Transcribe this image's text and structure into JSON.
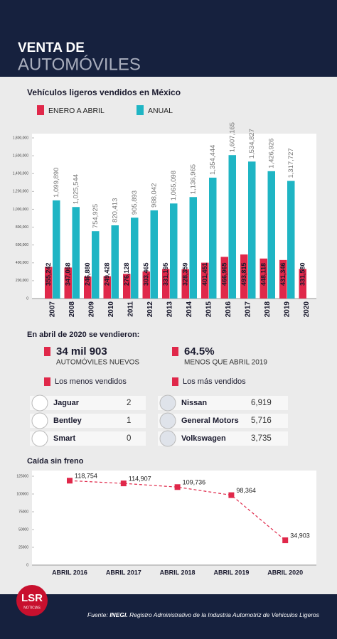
{
  "header": {
    "title_line1": "VENTA DE",
    "title_line2": "AUTOMÓVILES"
  },
  "chart_data": [
    {
      "type": "bar",
      "title": "Vehículos ligeros vendidos en México",
      "categories": [
        "2007",
        "2008",
        "2009",
        "2010",
        "2011",
        "2012",
        "2013",
        "2014",
        "2015",
        "2016",
        "2017",
        "2018",
        "2019",
        "2020"
      ],
      "series": [
        {
          "name": "ENERO A ABRIL",
          "color": "#e0284a",
          "values": [
            355242,
            347068,
            246880,
            249428,
            276128,
            303465,
            331195,
            328359,
            401451,
            466965,
            493815,
            448118,
            431346,
            331580
          ],
          "value_labels": [
            "355,242",
            "347,068",
            "246,880",
            "249,428",
            "276,128",
            "303,465",
            "331,195",
            "328,359",
            "401,451",
            "466,965",
            "493,815",
            "448,118",
            "431,346",
            "331,580"
          ]
        },
        {
          "name": "ANUAL",
          "color": "#1fb5c4",
          "values": [
            1099890,
            1025544,
            754925,
            820413,
            905893,
            988042,
            1065098,
            1136965,
            1354444,
            1607165,
            1534827,
            1426926,
            1317727,
            null
          ],
          "value_labels": [
            "1,099,890",
            "1,025,544",
            "754,925",
            "820,413",
            "905,893",
            "988,042",
            "1,065,098",
            "1,136,965",
            "1,354,444",
            "1,607,165",
            "1,534,827",
            "1,426,926",
            "1,317,727",
            null
          ]
        }
      ],
      "ylim": [
        0,
        1800000
      ],
      "yticks": [
        0,
        {
          "value": 200000,
          "label": "200,000"
        },
        {
          "value": 400000,
          "label": "400,000"
        },
        {
          "value": 600000,
          "label": "600,000"
        },
        {
          "value": 800000,
          "label": "800,000"
        },
        {
          "value": 1000000,
          "label": "1,000,000"
        },
        {
          "value": 1200000,
          "label": "1,200,000"
        },
        {
          "value": 1400000,
          "label": "1,400,000"
        },
        {
          "value": 1600000,
          "label": "1,600,000"
        },
        {
          "value": 1800000,
          "label": "1,800,000"
        }
      ]
    },
    {
      "type": "line",
      "title": "Caída sin freno",
      "categories": [
        "ABRIL 2016",
        "ABRIL 2017",
        "ABRIL 2018",
        "ABRIL 2019",
        "ABRIL 2020"
      ],
      "series": [
        {
          "color": "#e0284a",
          "values": [
            118754,
            114907,
            109736,
            98364,
            34903
          ],
          "value_labels": [
            "118,754",
            "114,907",
            "109,736",
            "98,364",
            "34,903"
          ]
        }
      ],
      "ylim": [
        0,
        125000
      ],
      "yticks": [
        0,
        25000,
        50000,
        75000,
        100000,
        125000
      ]
    }
  ],
  "summary": {
    "heading": "En abril de 2020 se vendieron:",
    "stats": [
      {
        "value": "34 mil 903",
        "label": "AUTOMÓVILES NUEVOS"
      },
      {
        "value": "64.5%",
        "label": "MENOS QUE ABRIL 2019"
      }
    ],
    "least_title": "Los menos vendidos",
    "least": [
      [
        "Jaguar",
        "2"
      ],
      [
        "Bentley",
        "1"
      ],
      [
        "Smart",
        "0"
      ]
    ],
    "most_title": "Los más vendidos",
    "most": [
      [
        "Nissan",
        "6,919"
      ],
      [
        "General Motors",
        "5,716"
      ],
      [
        "Volkswagen",
        "3,735"
      ]
    ]
  },
  "footer": {
    "logo": "LSR",
    "logo_sub": "NOTICIAS",
    "source_prefix": "Fuente: ",
    "source_org": "INEGI.",
    "source_text": " Registro Administrativo de la Industria Automotriz de Vehículos Ligeros"
  }
}
